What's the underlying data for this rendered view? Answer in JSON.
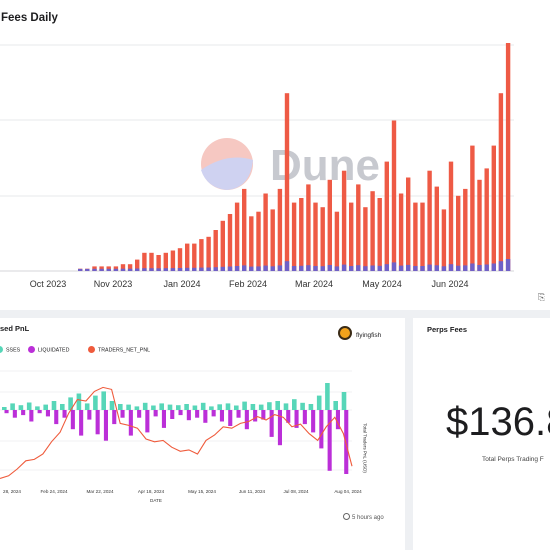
{
  "top_panel": {
    "title": "Fees Daily",
    "watermark": "Dune"
  },
  "pnl_panel": {
    "title": "sed PnL",
    "legend": [
      "SSES",
      "LIQUIDATED",
      "TRADERS_NET_PNL"
    ],
    "author": "flyingfish",
    "updated": "5 hours ago",
    "y2_title": "Total Traders PnL (USD)"
  },
  "fees_panel": {
    "title": "Perps Fees",
    "big_value": "$136.8",
    "subtitle": "Total Perps Trading F"
  },
  "colors": {
    "bars": "#ee5a45",
    "bars_under": "#6f60c7",
    "net_pnl": "#ef5b3c",
    "liquidated": "#bb2fd8",
    "losses_pos": "#57d6b8"
  },
  "chart_data": [
    {
      "type": "bar",
      "title": "Fees Daily",
      "x_tick_labels": [
        "Oct 2023",
        "Nov 2023",
        "Jan 2024",
        "Feb 2024",
        "Mar 2024",
        "May 2024",
        "Jun 2024"
      ],
      "x_range": [
        "2023-08-01",
        "2024-08-05"
      ],
      "ylim": [
        0,
        1
      ],
      "y_tick_labels_visible": false,
      "series": [
        {
          "values_relative": [
            0.01,
            0.01,
            0.02,
            0.02,
            0.02,
            0.02,
            0.03,
            0.03,
            0.05,
            0.08,
            0.08,
            0.07,
            0.08,
            0.09,
            0.1,
            0.12,
            0.12,
            0.14,
            0.15,
            0.18,
            0.22,
            0.25,
            0.3,
            0.36,
            0.24,
            0.26,
            0.34,
            0.27,
            0.36,
            0.78,
            0.3,
            0.32,
            0.38,
            0.3,
            0.28,
            0.4,
            0.26,
            0.44,
            0.3,
            0.38,
            0.28,
            0.35,
            0.32,
            0.48,
            0.66,
            0.34,
            0.41,
            0.3,
            0.3,
            0.44,
            0.37,
            0.27,
            0.48,
            0.33,
            0.36,
            0.55,
            0.4,
            0.45,
            0.55,
            0.78,
            1.0
          ]
        }
      ]
    },
    {
      "type": "bar",
      "title": "sed PnL",
      "x_tick_labels": [
        "28, 2024",
        "Feb 24, 2024",
        "Mar 22, 2024",
        "Apr 18, 2024",
        "May 15, 2024",
        "Jun 11, 2024",
        "Jul 08, 2024",
        "Aug 04, 2024"
      ],
      "xlabel": "DATE",
      "y2label": "Total Traders PnL (USD)",
      "series": [
        {
          "name": "SSES",
          "values_relative": [
            0.1,
            0.22,
            0.16,
            0.25,
            0.12,
            0.18,
            0.3,
            0.2,
            0.42,
            0.55,
            0.22,
            0.48,
            0.62,
            0.3,
            0.2,
            0.18,
            0.12,
            0.24,
            0.15,
            0.22,
            0.18,
            0.16,
            0.2,
            0.15,
            0.24,
            0.12,
            0.19,
            0.22,
            0.15,
            0.28,
            0.2,
            0.18,
            0.26,
            0.3,
            0.22,
            0.36,
            0.24,
            0.2,
            0.48,
            0.9,
            0.3,
            0.6
          ]
        },
        {
          "name": "LIQUIDATED",
          "values_relative": [
            -0.05,
            -0.12,
            -0.08,
            -0.18,
            -0.05,
            -0.1,
            -0.22,
            -0.12,
            -0.3,
            -0.4,
            -0.15,
            -0.38,
            -0.48,
            -0.22,
            -0.12,
            -0.4,
            -0.12,
            -0.35,
            -0.1,
            -0.28,
            -0.14,
            -0.08,
            -0.16,
            -0.12,
            -0.2,
            -0.1,
            -0.18,
            -0.25,
            -0.12,
            -0.3,
            -0.18,
            -0.15,
            -0.42,
            -0.55,
            -0.2,
            -0.28,
            -0.22,
            -0.35,
            -0.6,
            -0.95,
            -0.3,
            -1.0
          ]
        },
        {
          "name": "TRADERS_NET_PNL",
          "values_relative": [
            -0.86,
            -0.82,
            -0.72,
            -0.6,
            -0.58,
            -0.5,
            -0.32,
            -0.18,
            0.1,
            0.3,
            0.28,
            0.42,
            0.48,
            0.45,
            -0.05,
            -0.08,
            -0.12,
            -0.28,
            -0.32,
            -0.3,
            -0.4,
            -0.46,
            -0.44,
            -0.5,
            -0.3,
            -0.22,
            -0.1,
            -0.12,
            -0.05,
            -0.02,
            0.05,
            0.0,
            0.08,
            0.04,
            -0.1,
            -0.06,
            -0.2,
            -0.3,
            -0.1,
            0.04,
            -0.2,
            -0.68
          ]
        }
      ]
    }
  ]
}
